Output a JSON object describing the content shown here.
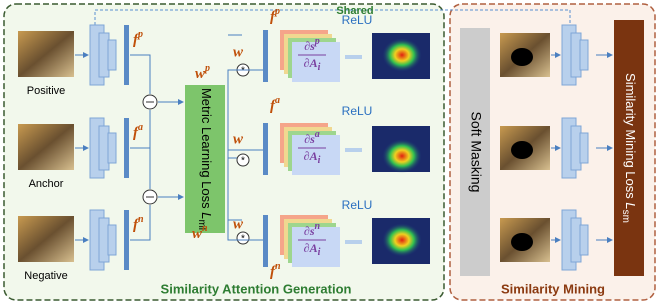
{
  "shared_label": "Shared",
  "inputs": [
    "Positive",
    "Anchor",
    "Negative"
  ],
  "left_features": [
    {
      "base": "f",
      "sup": "p"
    },
    {
      "base": "f",
      "sup": "a"
    },
    {
      "base": "f",
      "sup": "n"
    }
  ],
  "weights": [
    {
      "base": "w",
      "sup": "p"
    },
    {
      "base": "w",
      "sup": "n"
    }
  ],
  "w_labels": [
    "w",
    "w",
    "w"
  ],
  "right_features": [
    {
      "base": "f",
      "sup": "p"
    },
    {
      "base": "f",
      "sup": "a"
    },
    {
      "base": "f",
      "sup": "n"
    }
  ],
  "gradients": [
    {
      "num": "∂s",
      "num_sup": "p",
      "den": "∂A",
      "den_sub": "i"
    },
    {
      "num": "∂s",
      "num_sup": "a",
      "den": "∂A",
      "den_sub": "i"
    },
    {
      "num": "∂s",
      "num_sup": "n",
      "den": "∂A",
      "den_sub": "i"
    }
  ],
  "relu": [
    "ReLU",
    "ReLU",
    "ReLU"
  ],
  "metric_loss": {
    "text": "Metric Learning Loss ",
    "base": "L",
    "sub": "ml"
  },
  "soft_masking": "Soft Masking",
  "mining_loss": {
    "text": "Similarity Mining Loss ",
    "base": "L",
    "sub": "sm"
  },
  "sections": [
    "Similarity Attention Generation",
    "Similarity Mining"
  ]
}
